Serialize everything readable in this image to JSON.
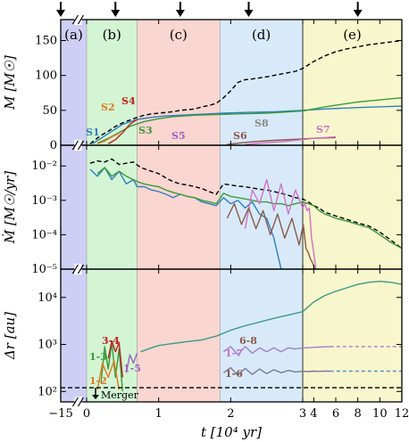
{
  "chart_data": {
    "type": "line",
    "xlabel": "t [10⁴ yr]",
    "x_ticks": [
      "−15",
      "0",
      "1",
      "2",
      "3",
      "4",
      "6",
      "8",
      "10",
      "12"
    ],
    "phases": [
      {
        "label": "(a)",
        "x0": -15,
        "x1": 0,
        "color": "#cfcff5"
      },
      {
        "label": "(b)",
        "x0": 0,
        "x1": 0.7,
        "color": "#d4f5d4"
      },
      {
        "label": "(c)",
        "x0": 0.7,
        "x1": 1.85,
        "color": "#f9d6d0"
      },
      {
        "label": "(d)",
        "x0": 1.85,
        "x1": 3,
        "color": "#d8eaf9"
      },
      {
        "label": "(e)",
        "x0": 3,
        "x1": 12,
        "color": "#f8f6cd"
      }
    ],
    "event_arrows_x": [
      -15,
      0.4,
      1.3,
      2.25,
      8
    ],
    "panels": [
      {
        "id": "mass",
        "ylabel": "M [M☉]",
        "scale": "linear",
        "ylim": [
          0,
          180
        ],
        "y_ticks": [
          "0",
          "50",
          "100",
          "150"
        ],
        "annotations": [
          "S1",
          "S2",
          "S3",
          "S4",
          "S5",
          "S6",
          "S7",
          "S8"
        ],
        "series": [
          {
            "name": "",
            "color": "#000000",
            "dash": "5,3",
            "x": [
              0.05,
              0.12,
              0.2,
              0.3,
              0.4,
              0.5,
              0.6,
              0.7,
              0.8,
              0.9,
              1.0,
              1.1,
              1.2,
              1.3,
              1.4,
              1.5,
              1.6,
              1.7,
              1.8,
              1.9,
              2.0,
              2.1,
              2.2,
              2.3,
              2.5,
              2.7,
              2.9,
              3.0,
              4,
              5,
              6,
              7,
              8,
              9,
              10,
              11,
              12
            ],
            "y": [
              2,
              8,
              14,
              20,
              27,
              32,
              36,
              40,
              43,
              45,
              46,
              47,
              48,
              50,
              51,
              52,
              55,
              57,
              60,
              68,
              78,
              90,
              94,
              95,
              98,
              102,
              106,
              110,
              120,
              128,
              134,
              138,
              141,
              144,
              146,
              148,
              150
            ]
          },
          {
            "name": "",
            "color": "#2f7fc1",
            "x": [
              0.08,
              0.2,
              0.35,
              0.5,
              0.7,
              0.9,
              1.1,
              1.3,
              1.5,
              1.7,
              1.9,
              2.2,
              2.6,
              3.0,
              5,
              8,
              12
            ],
            "y": [
              2,
              10,
              20,
              30,
              37,
              40,
              42,
              43,
              44,
              45,
              46,
              47,
              48,
              50,
              52,
              54,
              56
            ]
          },
          {
            "name": "",
            "color": "#3a9a3a",
            "x": [
              0.15,
              0.3,
              0.45,
              0.6,
              0.8,
              1.0,
              1.2,
              1.5,
              1.8,
              2.1,
              2.5,
              3.0,
              5,
              8,
              12
            ],
            "y": [
              3,
              10,
              18,
              27,
              34,
              38,
              41,
              43,
              44,
              45,
              46,
              49,
              55,
              62,
              68
            ]
          },
          {
            "name": "",
            "color": "#e07820",
            "x": [
              0.15,
              0.25,
              0.35,
              0.45
            ],
            "y": [
              2,
              6,
              12,
              17
            ]
          },
          {
            "name": "",
            "color": "#c02020",
            "x": [
              0.3,
              0.4,
              0.5,
              0.6,
              0.7
            ],
            "y": [
              2,
              8,
              18,
              30,
              37
            ]
          },
          {
            "name": "",
            "color": "#8b5a4a",
            "x": [
              1.95,
              2.1,
              2.3,
              2.6,
              3.0,
              4,
              6
            ],
            "y": [
              1,
              3,
              5,
              7,
              9,
              10,
              11
            ]
          },
          {
            "name": "",
            "color": "#d070c8",
            "x": [
              2.2,
              2.4,
              2.7,
              3.0,
              4,
              6
            ],
            "y": [
              1,
              3,
              5,
              8,
              10,
              12
            ]
          }
        ]
      },
      {
        "id": "rate",
        "ylabel": "Ṁ [M☉/yr]",
        "scale": "log",
        "ylim": [
          1e-05,
          0.04
        ],
        "y_ticks": [
          "10⁻⁵",
          "10⁻⁴",
          "10⁻³",
          "10⁻²"
        ],
        "series": [
          {
            "name": "",
            "color": "#000000",
            "dash": "5,3",
            "x": [
              0.05,
              0.15,
              0.25,
              0.35,
              0.45,
              0.55,
              0.65,
              0.75,
              0.9,
              1.0,
              1.1,
              1.2,
              1.3,
              1.4,
              1.5,
              1.6,
              1.7,
              1.8,
              1.9,
              2.0,
              2.1,
              2.2,
              2.3,
              2.4,
              2.5,
              2.6,
              2.7,
              2.8,
              2.9,
              3.0,
              3.5,
              4,
              4.5,
              5,
              5.5,
              6,
              7,
              8,
              9,
              10,
              11,
              12
            ],
            "y": [
              0.012,
              0.014,
              0.013,
              0.016,
              0.011,
              0.012,
              0.013,
              0.009,
              0.007,
              0.006,
              0.0045,
              0.0035,
              0.003,
              0.0028,
              0.0025,
              0.0022,
              0.0018,
              0.0015,
              0.003,
              0.0028,
              0.0026,
              0.0025,
              0.0023,
              0.0021,
              0.002,
              0.0018,
              0.0016,
              0.0014,
              0.0012,
              0.0011,
              0.0009,
              0.0007,
              0.0006,
              0.00045,
              0.0004,
              0.00035,
              0.00028,
              0.00022,
              0.00018,
              0.00012,
              7e-05,
              4e-05
            ]
          },
          {
            "name": "",
            "color": "#2f7fc1",
            "x": [
              0.05,
              0.15,
              0.25,
              0.35,
              0.45,
              0.55,
              0.65,
              0.7,
              0.8,
              0.9,
              1.0,
              1.1,
              1.2,
              1.3,
              1.4,
              1.5,
              1.6,
              1.7,
              1.8,
              1.9,
              2.0,
              2.1,
              2.2,
              2.3,
              2.4,
              2.5,
              2.6,
              2.7
            ],
            "y": [
              0.008,
              0.005,
              0.009,
              0.004,
              0.007,
              0.003,
              0.004,
              0.0025,
              0.0025,
              0.002,
              0.0018,
              0.0015,
              0.0012,
              0.0015,
              0.0013,
              0.0012,
              0.0009,
              0.0008,
              0.0007,
              0.0012,
              0.0008,
              0.001,
              0.0006,
              0.0009,
              0.0004,
              0.0003,
              8e-05,
              1e-05
            ]
          },
          {
            "name": "",
            "color": "#3a9a3a",
            "x": [
              0.15,
              0.25,
              0.35,
              0.45,
              0.55,
              0.65,
              0.7,
              0.8,
              0.9,
              1.0,
              1.1,
              1.2,
              1.3,
              1.4,
              1.5,
              1.6,
              1.7,
              1.8,
              1.9,
              2.0,
              2.1,
              2.2,
              2.3,
              2.4,
              2.5,
              2.6,
              2.7,
              2.8,
              2.9,
              3.0,
              3.5,
              4,
              4.5,
              5,
              5.5,
              6,
              7,
              8,
              9,
              10,
              11,
              12
            ],
            "y": [
              0.006,
              0.009,
              0.005,
              0.007,
              0.005,
              0.004,
              0.0035,
              0.003,
              0.0027,
              0.0025,
              0.002,
              0.0017,
              0.0015,
              0.0013,
              0.0012,
              0.001,
              0.0009,
              0.0008,
              0.0016,
              0.0013,
              0.0012,
              0.0011,
              0.001,
              0.0009,
              0.0009,
              0.0008,
              0.0008,
              0.0007,
              0.0008,
              0.0009,
              0.0008,
              0.0007,
              0.0005,
              0.0004,
              0.00035,
              0.0003,
              0.00025,
              0.0002,
              0.00016,
              0.0001,
              6e-05,
              4e-05
            ]
          },
          {
            "name": "",
            "color": "#d070c8",
            "x": [
              2.2,
              2.3,
              2.4,
              2.5,
              2.6,
              2.7,
              2.8,
              2.9,
              3.0,
              3.2,
              3.4,
              3.6,
              3.8,
              4.0,
              4.2
            ],
            "y": [
              0.00015,
              0.002,
              0.0008,
              0.004,
              0.0005,
              0.003,
              0.0004,
              0.002,
              0.0006,
              0.0008,
              0.0005,
              0.0006,
              8e-05,
              3e-05,
              1e-05
            ]
          },
          {
            "name": "",
            "color": "#8b5a4a",
            "x": [
              1.95,
              2.05,
              2.15,
              2.25,
              2.35,
              2.45,
              2.55,
              2.65,
              2.75,
              2.85,
              2.95,
              3.05,
              3.3,
              3.5,
              3.7,
              3.9,
              4.1
            ],
            "y": [
              0.0003,
              0.0008,
              0.0002,
              0.0006,
              0.00015,
              0.0005,
              0.0001,
              0.0004,
              8e-05,
              0.0003,
              5e-05,
              0.0002,
              4e-05,
              3e-05,
              2e-05,
              1.5e-05,
              1e-05
            ]
          }
        ]
      },
      {
        "id": "separation",
        "ylabel": "Δr [au]",
        "scale": "log",
        "ylim": [
          60,
          40000
        ],
        "y_ticks": [
          "10²",
          "10³",
          "10⁴"
        ],
        "merger_label": "Merger",
        "merger_level": 120,
        "annotations": [
          {
            "text": "3-4",
            "color": "#c02020"
          },
          {
            "text": "1-3",
            "color": "#3a9a3a"
          },
          {
            "text": "1-2",
            "color": "#e07820"
          },
          {
            "text": "1-5",
            "color": "#a05fc0"
          },
          {
            "text": "1-7",
            "color": "#d070c8"
          },
          {
            "text": "6-8",
            "color": "#8b5a4a"
          },
          {
            "text": "1-6",
            "color": "#8b5a4a"
          }
        ],
        "series": [
          {
            "name": "",
            "color": "#3a9a8a",
            "x": [
              0.75,
              0.9,
              1.0,
              1.2,
              1.4,
              1.6,
              1.8,
              2.0,
              2.2,
              2.4,
              2.6,
              2.8,
              3.0,
              4,
              5,
              6,
              7,
              8,
              9,
              10,
              11,
              12
            ],
            "y": [
              700,
              850,
              950,
              1050,
              1150,
              1250,
              1500,
              2000,
              2500,
              3000,
              3600,
              4200,
              5000,
              8000,
              11000,
              13500,
              16000,
              19000,
              21000,
              22000,
              21000,
              19000
            ]
          },
          {
            "name": "",
            "color": "#3a9a3a",
            "x": [
              0.2,
              0.25,
              0.3,
              0.35,
              0.4,
              0.45,
              0.5
            ],
            "y": [
              150,
              900,
              300,
              1100,
              200,
              800,
              100
            ]
          },
          {
            "name": "",
            "color": "#e07820",
            "x": [
              0.15,
              0.22,
              0.3,
              0.38,
              0.45
            ],
            "y": [
              110,
              400,
              200,
              450,
              110
            ]
          },
          {
            "name": "",
            "color": "#c02020",
            "x": [
              0.3,
              0.35,
              0.4,
              0.45,
              0.5
            ],
            "y": [
              500,
              1200,
              700,
              1100,
              200
            ]
          },
          {
            "name": "",
            "color": "#a05fc0",
            "x": [
              0.55,
              0.6,
              0.65,
              0.7
            ],
            "y": [
              250,
              600,
              400,
              650
            ]
          },
          {
            "name": "",
            "color": "#9f7fd0",
            "x": [
              1.9,
              2.0,
              2.1,
              2.2,
              2.3,
              2.4,
              2.5,
              2.6,
              2.7,
              2.8,
              2.9,
              3.0,
              3.5,
              4,
              4.5,
              5,
              5.5
            ],
            "y": [
              700,
              900,
              600,
              900,
              650,
              850,
              700,
              850,
              700,
              850,
              800,
              850,
              850,
              870,
              880,
              890,
              900
            ]
          },
          {
            "name": "",
            "color": "#9f7fd0",
            "dash": "4,3",
            "x": [
              5.5,
              12
            ],
            "y": [
              900,
              900
            ]
          },
          {
            "name": "",
            "color": "#7a7a9a",
            "x": [
              1.9,
              2.0,
              2.1,
              2.2,
              2.3,
              2.4,
              2.5,
              2.6,
              2.7,
              2.8,
              2.9,
              3.0,
              3.5,
              4,
              4.5,
              5,
              5.5
            ],
            "y": [
              250,
              320,
              220,
              310,
              230,
              300,
              240,
              290,
              250,
              280,
              260,
              270,
              265,
              270,
              268,
              272,
              270
            ]
          },
          {
            "name": "",
            "color": "#5a8fc0",
            "dash": "4,3",
            "x": [
              5.5,
              12
            ],
            "y": [
              270,
              270
            ]
          },
          {
            "name": "",
            "color": "#000000",
            "dash": "5,3",
            "x": [
              -15,
              12
            ],
            "y": [
              120,
              120
            ]
          }
        ]
      }
    ]
  }
}
